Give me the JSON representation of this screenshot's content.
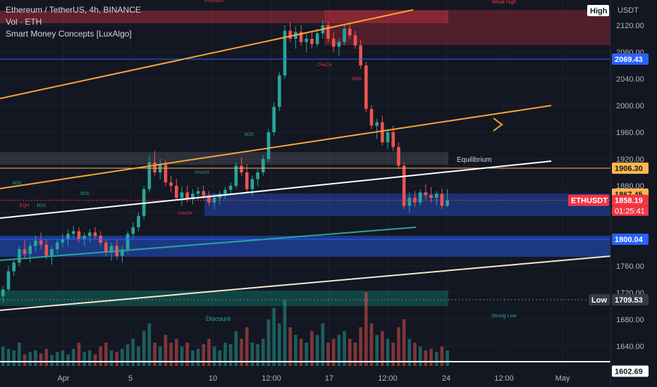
{
  "legend": {
    "symbol": "Ethereum / TetherUS, 4h, BINANCE",
    "vol": "Vol · ETH",
    "indicator": "Smart Money Concepts [LuxAlgo]"
  },
  "chart_data": {
    "type": "candlestick",
    "quote_currency": "USDT",
    "price_axis": {
      "ticks": [
        "2120.00",
        "2080.00",
        "2040.00",
        "2000.00",
        "1960.00",
        "1920.00",
        "1880.00",
        "1840.00",
        "1800.00",
        "1760.00",
        "1720.00",
        "1680.00",
        "1640.00"
      ],
      "tick_values": [
        2120,
        2080,
        2040,
        2000,
        1960,
        1920,
        1880,
        1840,
        1800,
        1760,
        1720,
        1680,
        1640
      ]
    },
    "time_axis": [
      "Apr",
      "5",
      "10",
      "12:00",
      "17",
      "12:00",
      "24",
      "12:00",
      "May"
    ],
    "price_tags": [
      {
        "label": "2069.43",
        "value": 2069.43,
        "color": "#2962ff",
        "text_color": "#ffffff"
      },
      {
        "label": "1906.30",
        "value": 1906.3,
        "color": "#ffb74d",
        "text_color": "#131722"
      },
      {
        "label": "1867.45",
        "value": 1867.45,
        "color": "#ffb74d",
        "text_color": "#131722"
      },
      {
        "label": "1858.19",
        "value": 1858.19,
        "color": "#f23645",
        "text_color": "#ffffff"
      },
      {
        "label": "1800.04",
        "value": 1800.04,
        "color": "#2962ff",
        "text_color": "#ffffff"
      },
      {
        "label": "1709.53",
        "value": 1709.53,
        "color": "#363a45",
        "text_color": "#ffffff"
      },
      {
        "label": "1602.69",
        "value": 1602.69,
        "color": "#ffffff",
        "text_color": "#131722"
      }
    ],
    "high_label": "High",
    "low_label": "Low",
    "symbol_tag": "ETHUSDT",
    "countdown": "01:25:41",
    "annotations": [
      "Equilibrium",
      "Discount",
      "Strong Low",
      "Weak High",
      "Premium",
      "BOS",
      "CHoCH",
      "EQH"
    ],
    "candles": [
      [
        1715,
        1730,
        1705,
        1725
      ],
      [
        1725,
        1760,
        1722,
        1752
      ],
      [
        1752,
        1770,
        1745,
        1765
      ],
      [
        1765,
        1790,
        1760,
        1785
      ],
      [
        1785,
        1800,
        1770,
        1778
      ],
      [
        1778,
        1795,
        1765,
        1790
      ],
      [
        1790,
        1805,
        1782,
        1798
      ],
      [
        1798,
        1810,
        1785,
        1792
      ],
      [
        1792,
        1800,
        1770,
        1775
      ],
      [
        1775,
        1790,
        1762,
        1785
      ],
      [
        1785,
        1800,
        1778,
        1795
      ],
      [
        1795,
        1808,
        1788,
        1800
      ],
      [
        1800,
        1815,
        1790,
        1808
      ],
      [
        1808,
        1820,
        1800,
        1812
      ],
      [
        1812,
        1818,
        1795,
        1800
      ],
      [
        1800,
        1810,
        1790,
        1805
      ],
      [
        1805,
        1815,
        1795,
        1810
      ],
      [
        1810,
        1818,
        1800,
        1805
      ],
      [
        1805,
        1812,
        1790,
        1795
      ],
      [
        1795,
        1800,
        1775,
        1780
      ],
      [
        1780,
        1795,
        1768,
        1790
      ],
      [
        1790,
        1800,
        1770,
        1775
      ],
      [
        1775,
        1790,
        1765,
        1785
      ],
      [
        1785,
        1812,
        1780,
        1808
      ],
      [
        1808,
        1825,
        1800,
        1818
      ],
      [
        1818,
        1840,
        1812,
        1835
      ],
      [
        1835,
        1880,
        1830,
        1875
      ],
      [
        1875,
        1925,
        1870,
        1915
      ],
      [
        1915,
        1932,
        1895,
        1900
      ],
      [
        1900,
        1920,
        1890,
        1912
      ],
      [
        1912,
        1918,
        1880,
        1885
      ],
      [
        1885,
        1895,
        1870,
        1880
      ],
      [
        1880,
        1890,
        1858,
        1862
      ],
      [
        1862,
        1878,
        1850,
        1870
      ],
      [
        1870,
        1880,
        1855,
        1860
      ],
      [
        1860,
        1875,
        1852,
        1868
      ],
      [
        1868,
        1878,
        1858,
        1872
      ],
      [
        1872,
        1880,
        1860,
        1865
      ],
      [
        1865,
        1872,
        1850,
        1855
      ],
      [
        1855,
        1868,
        1845,
        1862
      ],
      [
        1862,
        1872,
        1852,
        1868
      ],
      [
        1868,
        1878,
        1860,
        1874
      ],
      [
        1874,
        1885,
        1868,
        1880
      ],
      [
        1880,
        1915,
        1876,
        1910
      ],
      [
        1910,
        1922,
        1895,
        1900
      ],
      [
        1900,
        1912,
        1870,
        1875
      ],
      [
        1875,
        1895,
        1865,
        1890
      ],
      [
        1890,
        1905,
        1880,
        1900
      ],
      [
        1900,
        1925,
        1895,
        1920
      ],
      [
        1920,
        1965,
        1915,
        1960
      ],
      [
        1960,
        2005,
        1955,
        1998
      ],
      [
        1998,
        2050,
        1992,
        2045
      ],
      [
        2045,
        2120,
        2040,
        2112
      ],
      [
        2112,
        2125,
        2095,
        2100
      ],
      [
        2100,
        2118,
        2085,
        2110
      ],
      [
        2110,
        2120,
        2090,
        2095
      ],
      [
        2095,
        2108,
        2080,
        2100
      ],
      [
        2100,
        2110,
        2085,
        2092
      ],
      [
        2092,
        2115,
        2088,
        2108
      ],
      [
        2108,
        2128,
        2100,
        2120
      ],
      [
        2120,
        2125,
        2095,
        2100
      ],
      [
        2100,
        2110,
        2080,
        2088
      ],
      [
        2088,
        2100,
        2075,
        2095
      ],
      [
        2095,
        2120,
        2090,
        2115
      ],
      [
        2115,
        2124,
        2100,
        2105
      ],
      [
        2105,
        2112,
        2085,
        2090
      ],
      [
        2090,
        2098,
        2055,
        2060
      ],
      [
        2060,
        2065,
        1990,
        1995
      ],
      [
        1995,
        2000,
        1965,
        1970
      ],
      [
        1970,
        1980,
        1950,
        1975
      ],
      [
        1975,
        1985,
        1940,
        1945
      ],
      [
        1945,
        1965,
        1935,
        1960
      ],
      [
        1960,
        1970,
        1932,
        1938
      ],
      [
        1938,
        1945,
        1905,
        1910
      ],
      [
        1910,
        1915,
        1845,
        1850
      ],
      [
        1850,
        1870,
        1840,
        1862
      ],
      [
        1862,
        1872,
        1848,
        1855
      ],
      [
        1855,
        1875,
        1850,
        1870
      ],
      [
        1870,
        1882,
        1860,
        1866
      ],
      [
        1866,
        1878,
        1855,
        1862
      ],
      [
        1862,
        1872,
        1850,
        1868
      ],
      [
        1868,
        1876,
        1845,
        1850
      ],
      [
        1850,
        1875,
        1848,
        1858
      ]
    ],
    "volumes": [
      0.25,
      0.22,
      0.2,
      0.3,
      0.15,
      0.18,
      0.2,
      0.16,
      0.22,
      0.14,
      0.18,
      0.2,
      0.15,
      0.22,
      0.3,
      0.18,
      0.2,
      0.15,
      0.25,
      0.3,
      0.2,
      0.18,
      0.22,
      0.28,
      0.35,
      0.25,
      0.45,
      0.55,
      0.3,
      0.25,
      0.4,
      0.3,
      0.35,
      0.25,
      0.3,
      0.2,
      0.22,
      0.28,
      0.35,
      0.25,
      0.2,
      0.3,
      0.28,
      0.45,
      0.35,
      0.5,
      0.3,
      0.28,
      0.35,
      0.6,
      0.75,
      0.55,
      0.85,
      0.5,
      0.4,
      0.35,
      0.3,
      0.45,
      0.4,
      0.55,
      0.3,
      0.35,
      0.4,
      0.45,
      0.35,
      0.3,
      0.5,
      0.95,
      0.55,
      0.4,
      0.45,
      0.35,
      0.3,
      0.5,
      0.6,
      0.35,
      0.3,
      0.25,
      0.2,
      0.22,
      0.18,
      0.25,
      0.2
    ]
  }
}
